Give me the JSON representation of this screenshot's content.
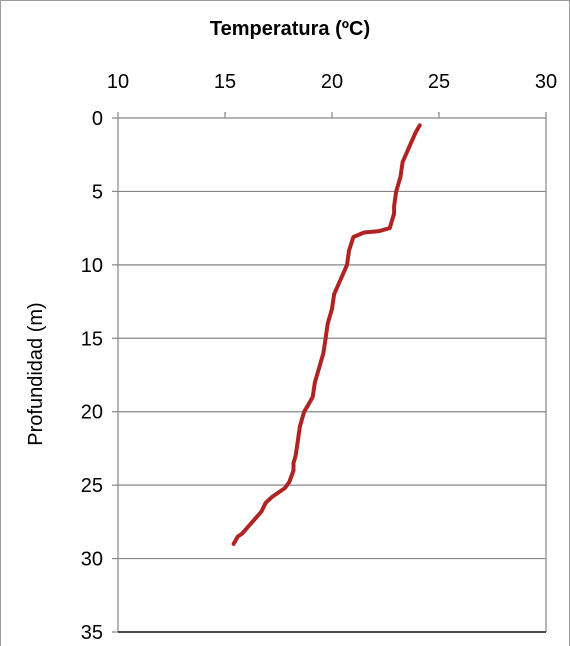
{
  "chart_data": {
    "type": "line",
    "title": "Temperatura (ºC)",
    "xlabel": "Temperatura (ºC)",
    "ylabel": "Profundidad (m)",
    "xlim": [
      10,
      30
    ],
    "ylim": [
      0,
      35
    ],
    "x_ticks": [
      "10",
      "15",
      "20",
      "25",
      "30"
    ],
    "y_ticks": [
      "0",
      "5",
      "10",
      "15",
      "20",
      "25",
      "30",
      "35"
    ],
    "x_axis_position": "top",
    "y_axis_inverted": true,
    "grid": "horizontal",
    "legend": "none",
    "series": [
      {
        "color": "#b02323",
        "x": [
          24.1,
          23.9,
          23.6,
          23.3,
          23.2,
          23.0,
          22.9,
          22.9,
          22.8,
          22.7,
          22.2,
          21.5,
          21.0,
          20.8,
          20.7,
          20.4,
          20.1,
          20.0,
          19.8,
          19.7,
          19.6,
          19.4,
          19.2,
          19.1,
          18.9,
          18.7,
          18.6,
          18.5,
          18.4,
          18.3,
          18.2,
          18.2,
          18.0,
          17.8,
          17.2,
          16.9,
          16.7,
          16.4,
          16.1,
          15.8,
          15.6,
          15.4
        ],
        "y": [
          0.5,
          1.0,
          2.0,
          3.0,
          4.0,
          5.0,
          6.0,
          6.5,
          7.0,
          7.5,
          7.7,
          7.8,
          8.1,
          9.0,
          10.0,
          11.0,
          12.0,
          13.0,
          14.0,
          15.0,
          16.0,
          17.0,
          18.0,
          19.0,
          19.5,
          20.0,
          20.5,
          21.0,
          22.0,
          23.0,
          23.5,
          24.0,
          24.8,
          25.2,
          25.8,
          26.2,
          26.8,
          27.3,
          27.8,
          28.3,
          28.5,
          29.0
        ]
      }
    ]
  },
  "colors": {
    "line": "#b02323",
    "grid": "#868686",
    "frame": "#9a9a9a"
  }
}
